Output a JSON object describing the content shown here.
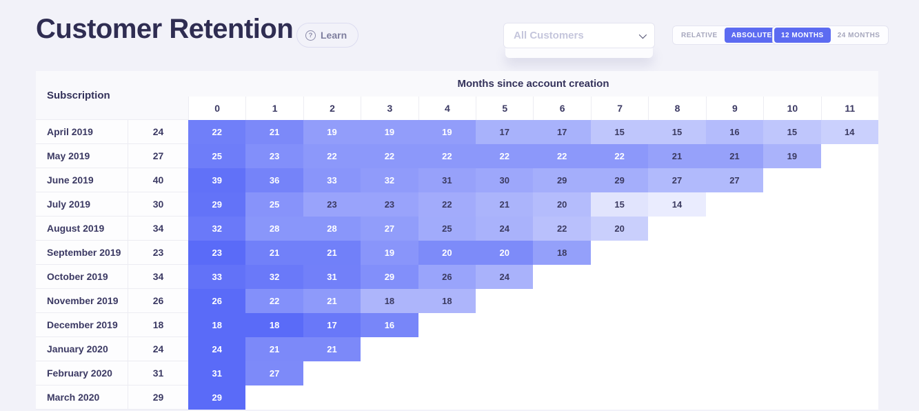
{
  "page": {
    "title": "Customer Retention",
    "learn_label": "Learn",
    "help_glyph": "?"
  },
  "filters": {
    "customers_dropdown": {
      "value": "All Customers"
    },
    "mode_toggle": {
      "options": [
        "RELATIVE",
        "ABSOLUTE"
      ],
      "selected": "ABSOLUTE"
    },
    "window_toggle": {
      "options": [
        "12 MONTHS",
        "24 MONTHS"
      ],
      "selected": "12 MONTHS"
    }
  },
  "colors": {
    "accent": "#5c6bf1",
    "heat_min": "#eef0fe",
    "heat_max": "#5a6bf8",
    "cell_text_dark": "#3b3a60",
    "cell_text_light": "#ffffff"
  },
  "chart_data": {
    "type": "heatmap",
    "title": "Customer Retention",
    "row_header": "Subscription",
    "column_header": "Months since account creation",
    "columns": [
      "0",
      "1",
      "2",
      "3",
      "4",
      "5",
      "6",
      "7",
      "8",
      "9",
      "10",
      "11"
    ],
    "rows": [
      {
        "label": "April 2019",
        "cohort_size": 24,
        "values": [
          22,
          21,
          19,
          19,
          19,
          17,
          17,
          15,
          15,
          16,
          15,
          14
        ]
      },
      {
        "label": "May 2019",
        "cohort_size": 27,
        "values": [
          25,
          23,
          22,
          22,
          22,
          22,
          22,
          22,
          21,
          21,
          19
        ]
      },
      {
        "label": "June 2019",
        "cohort_size": 40,
        "values": [
          39,
          36,
          33,
          32,
          31,
          30,
          29,
          29,
          27,
          27
        ]
      },
      {
        "label": "July 2019",
        "cohort_size": 30,
        "values": [
          29,
          25,
          23,
          23,
          22,
          21,
          20,
          15,
          14
        ]
      },
      {
        "label": "August 2019",
        "cohort_size": 34,
        "values": [
          32,
          28,
          28,
          27,
          25,
          24,
          22,
          20
        ]
      },
      {
        "label": "September 2019",
        "cohort_size": 23,
        "values": [
          23,
          21,
          21,
          19,
          20,
          20,
          18
        ]
      },
      {
        "label": "October 2019",
        "cohort_size": 34,
        "values": [
          33,
          32,
          31,
          29,
          26,
          24
        ]
      },
      {
        "label": "November 2019",
        "cohort_size": 26,
        "values": [
          26,
          22,
          21,
          18,
          18
        ]
      },
      {
        "label": "December 2019",
        "cohort_size": 18,
        "values": [
          18,
          18,
          17,
          16
        ]
      },
      {
        "label": "January 2020",
        "cohort_size": 24,
        "values": [
          24,
          21,
          21
        ]
      },
      {
        "label": "February 2020",
        "cohort_size": 31,
        "values": [
          31,
          27
        ]
      },
      {
        "label": "March 2020",
        "cohort_size": 29,
        "values": [
          29
        ]
      }
    ],
    "color_scale": {
      "min_pct": 0.45,
      "max_pct": 1.0,
      "white_text_threshold": 0.787
    }
  }
}
